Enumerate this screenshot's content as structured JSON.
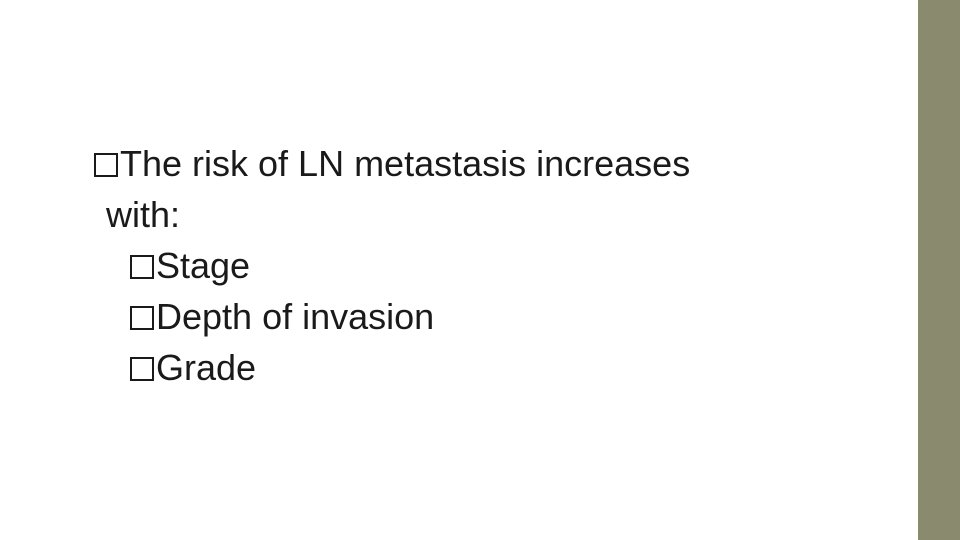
{
  "slide": {
    "background_color": "#ffffff",
    "accent_bar_color": "#8a8a6e",
    "text_color": "#1a1a1a",
    "font_family": "Arial",
    "font_size_pt": 27,
    "bullet_style": "hollow-square",
    "lines": [
      {
        "indent": 0,
        "text": "The risk of LN metastasis increases"
      },
      {
        "indent": 0,
        "continuation": true,
        "text": "with:"
      },
      {
        "indent": 1,
        "text": "Stage"
      },
      {
        "indent": 1,
        "text": "Depth of invasion"
      },
      {
        "indent": 1,
        "text": "Grade"
      }
    ]
  }
}
